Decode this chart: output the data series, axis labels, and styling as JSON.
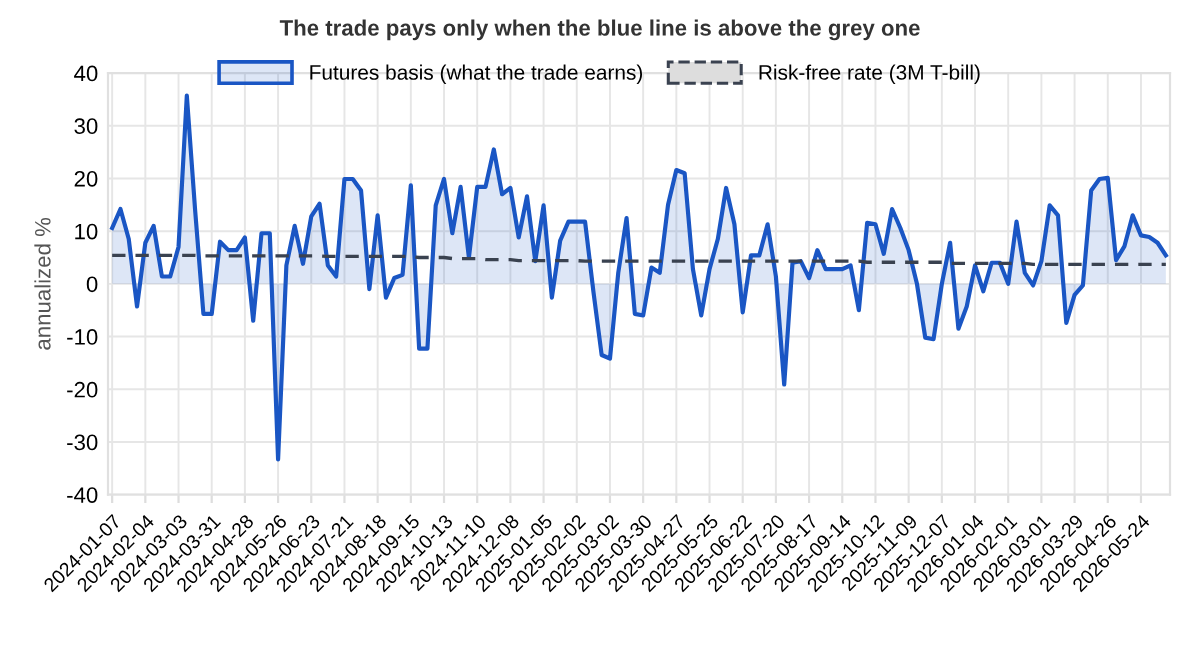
{
  "chart_data": {
    "type": "line",
    "title": "The trade pays only when the blue line is above the grey one",
    "ylabel": "annualized %",
    "categories": [
      "2024-01-07",
      null,
      null,
      null,
      "2024-02-04",
      null,
      null,
      null,
      "2024-03-03",
      null,
      null,
      null,
      "2024-03-31",
      null,
      null,
      null,
      "2024-04-28",
      null,
      null,
      null,
      "2024-05-26",
      null,
      null,
      null,
      "2024-06-23",
      null,
      null,
      null,
      "2024-07-21",
      null,
      null,
      null,
      "2024-08-18",
      null,
      null,
      null,
      "2024-09-15",
      null,
      null,
      null,
      "2024-10-13",
      null,
      null,
      null,
      "2024-11-10",
      null,
      null,
      null,
      "2024-12-08",
      null,
      null,
      null,
      "2025-01-05",
      null,
      null,
      null,
      "2025-02-02",
      null,
      null,
      null,
      "2025-03-02",
      null,
      null,
      null,
      "2025-03-30",
      null,
      null,
      null,
      "2025-04-27",
      null,
      null,
      null,
      "2025-05-25",
      null,
      null,
      null,
      "2025-06-22",
      null,
      null,
      null,
      "2025-07-20",
      null,
      null,
      null,
      "2025-08-17",
      null,
      null,
      null,
      "2025-09-14",
      null,
      null,
      null,
      "2025-10-12",
      null,
      null,
      null,
      "2025-11-09",
      null,
      null,
      null,
      "2025-12-07",
      null,
      null,
      null,
      "2026-01-04",
      null,
      null,
      null,
      "2026-02-01",
      null,
      null,
      null,
      "2026-03-01",
      null,
      null,
      null,
      "2026-03-29",
      null,
      null,
      null,
      "2026-04-26",
      null,
      null,
      null,
      "2026-05-24",
      null,
      null,
      null
    ],
    "series": [
      {
        "name": "Futures basis (what the trade earns)",
        "type": "area",
        "color": "#1a56c4",
        "values": [
          10.6,
          14.2,
          8.5,
          -4.3,
          7.8,
          11,
          1.4,
          1.4,
          7,
          35.7,
          14,
          -5.7,
          -5.7,
          8,
          6.4,
          6.4,
          8.8,
          -7,
          9.6,
          9.6,
          -33.3,
          3.5,
          11,
          3.8,
          12.8,
          15.2,
          3.5,
          1.4,
          19.9,
          19.9,
          17.7,
          -1,
          13,
          -2.6,
          1.1,
          1.7,
          18.7,
          -12.3,
          -12.3,
          14.9,
          19.9,
          9.6,
          18.4,
          5,
          18.4,
          18.4,
          25.5,
          17,
          18.2,
          8.8,
          16.6,
          4.3,
          14.9,
          -2.6,
          8.2,
          11.8,
          11.8,
          11.8,
          -1.4,
          -13.5,
          -14.2,
          2.1,
          12.5,
          -5.7,
          -6,
          3.1,
          2.1,
          15,
          21.6,
          21,
          2.8,
          -6,
          2.8,
          8.5,
          18.2,
          11.3,
          -5.4,
          5.4,
          5.4,
          11.3,
          1.4,
          -19.1,
          4,
          4.3,
          1.1,
          6.4,
          2.8,
          2.8,
          2.8,
          3.5,
          -5,
          11.6,
          11.3,
          5.7,
          14.2,
          10.6,
          6.4,
          0,
          -10.2,
          -10.5,
          0,
          7.8,
          -8.5,
          -4.3,
          3.5,
          -1.4,
          4,
          4,
          0,
          11.8,
          2.1,
          -0.3,
          4.3,
          14.9,
          13,
          -7.4,
          -2.1,
          -0.3,
          17.7,
          19.9,
          20.1,
          4.5,
          7.1,
          13,
          9.2,
          8.9,
          7.8,
          5.4
        ]
      },
      {
        "name": "Risk-free rate (3M T-bill)",
        "line_style": "dashed",
        "color": "#3a4250",
        "values": [
          5.4,
          5.4,
          5.4,
          5.4,
          5.4,
          5.4,
          5.4,
          5.4,
          5.4,
          5.4,
          5.4,
          5.3,
          5.3,
          5.3,
          5.3,
          5.3,
          5.3,
          5.3,
          5.3,
          5.3,
          5.3,
          5.3,
          5.3,
          5.3,
          5.3,
          5.3,
          5.2,
          5.2,
          5.2,
          5.2,
          5.2,
          5.2,
          5.2,
          5.2,
          5.2,
          5.2,
          5.2,
          5.0,
          5.0,
          5.0,
          5.0,
          4.8,
          4.8,
          4.8,
          4.8,
          4.6,
          4.6,
          4.6,
          4.6,
          4.4,
          4.4,
          4.4,
          4.4,
          4.4,
          4.4,
          4.4,
          4.4,
          4.3,
          4.3,
          4.3,
          4.3,
          4.3,
          4.3,
          4.3,
          4.3,
          4.3,
          4.3,
          4.3,
          4.3,
          4.3,
          4.3,
          4.3,
          4.3,
          4.3,
          4.3,
          4.3,
          4.3,
          4.3,
          4.3,
          4.3,
          4.3,
          4.3,
          4.3,
          4.3,
          4.3,
          4.3,
          4.3,
          4.3,
          4.3,
          4.3,
          4.3,
          4.1,
          4.1,
          4.1,
          4.1,
          4.1,
          4.1,
          4.1,
          4.1,
          4.1,
          4.1,
          3.9,
          3.9,
          3.9,
          3.9,
          3.9,
          3.9,
          3.9,
          3.9,
          3.9,
          3.9,
          3.7,
          3.7,
          3.7,
          3.7,
          3.7,
          3.7,
          3.7,
          3.7,
          3.7,
          3.7,
          3.7,
          3.7,
          3.7,
          3.7,
          3.7,
          3.7,
          3.7
        ]
      }
    ],
    "ylim": [
      -40,
      40
    ],
    "yticks": [
      -40,
      -30,
      -20,
      -10,
      0,
      10,
      20,
      30,
      40
    ],
    "grid": true,
    "legend": "top",
    "marker": "none"
  }
}
